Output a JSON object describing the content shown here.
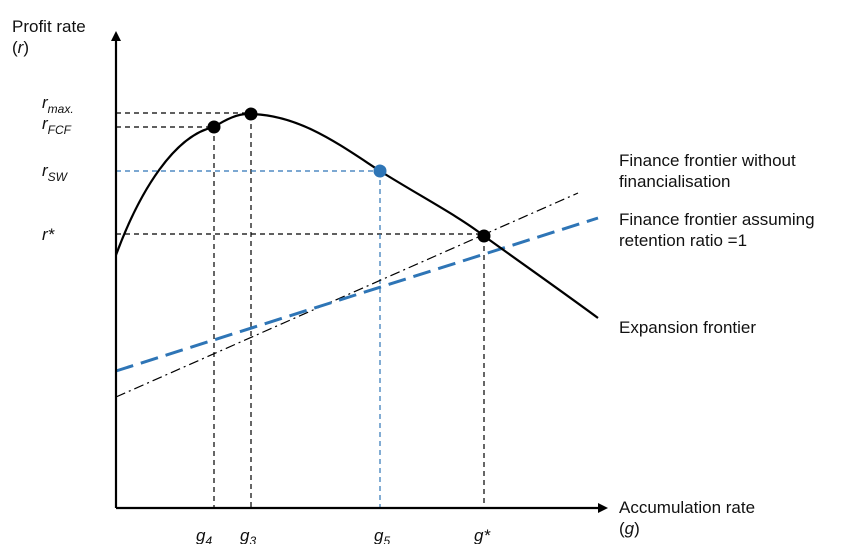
{
  "axes": {
    "y_title_line1": "Profit rate",
    "y_title_line2": "(r)",
    "x_title_line1": "Accumulation rate",
    "x_title_line2": "(g)"
  },
  "y_labels": {
    "r_max": {
      "base": "r",
      "sub": "max."
    },
    "r_fcf": {
      "base": "r",
      "sub": "FCF"
    },
    "r_sw": {
      "base": "r",
      "sub": "SW"
    },
    "r_star": {
      "base": "r*"
    }
  },
  "x_labels": {
    "g4": {
      "base": "g",
      "sub": "4"
    },
    "g3": {
      "base": "g",
      "sub": "3"
    },
    "g5": {
      "base": "g",
      "sub": "5"
    },
    "g_star": {
      "base": "g*"
    }
  },
  "curves": {
    "finance_frontier_no_fin_line1": "Finance frontier without",
    "finance_frontier_no_fin_line2": "financialisation",
    "finance_frontier_retention_line1": "Finance frontier assuming",
    "finance_frontier_retention_line2": "retention ratio =1",
    "expansion_frontier": "Expansion frontier"
  },
  "colors": {
    "axis": "#000000",
    "expansion_frontier": "#000000",
    "finance_no_fin": "#000000",
    "finance_retention": "#2e75b6",
    "sw_guides": "#2e75b6",
    "sw_point": "#2e75b6",
    "points": "#000000"
  }
}
